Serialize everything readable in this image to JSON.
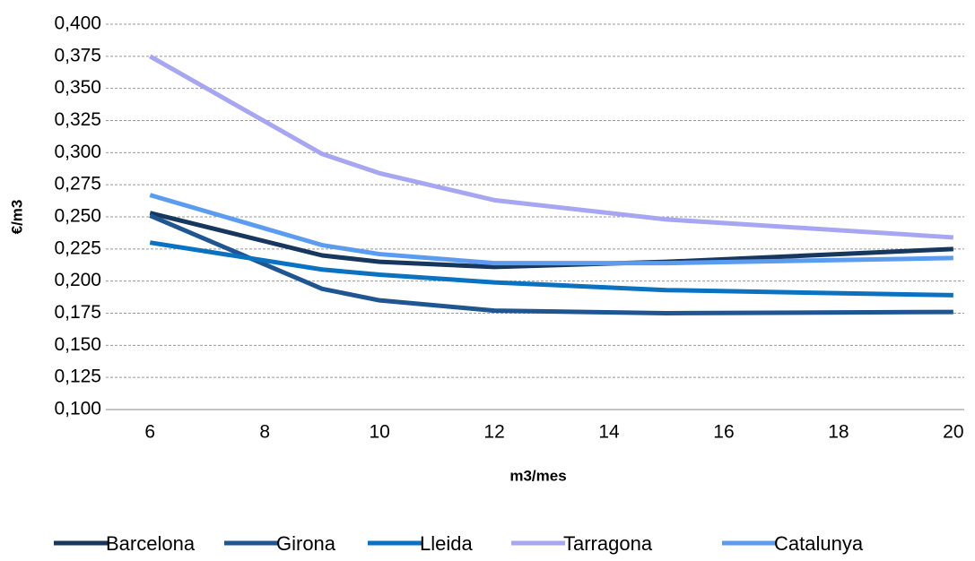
{
  "chart_data": {
    "type": "line",
    "x_label": "m3/mes",
    "y_label": "€/m3",
    "x": [
      6,
      9,
      10,
      12,
      15,
      20
    ],
    "series": [
      {
        "name": "Barcelona",
        "color": "#17375e",
        "values": [
          0.253,
          0.22,
          0.215,
          0.211,
          0.215,
          0.225
        ]
      },
      {
        "name": "Girona",
        "color": "#1f5591",
        "values": [
          0.251,
          0.194,
          0.185,
          0.177,
          0.175,
          0.176
        ]
      },
      {
        "name": "Lleida",
        "color": "#0a72c1",
        "values": [
          0.23,
          0.209,
          0.205,
          0.199,
          0.193,
          0.189
        ]
      },
      {
        "name": "Tarragona",
        "color": "#a6a6f2",
        "values": [
          0.375,
          0.299,
          0.284,
          0.263,
          0.248,
          0.234
        ]
      },
      {
        "name": "Catalunya",
        "color": "#5c9cf0",
        "values": [
          0.267,
          0.228,
          0.221,
          0.214,
          0.214,
          0.218
        ]
      }
    ],
    "xlim": [
      5.23,
      20.19
    ],
    "xticks": [
      6,
      8,
      10,
      12,
      14,
      16,
      18,
      20
    ],
    "ylim": [
      0.1,
      0.4
    ],
    "yticks": [
      {
        "value": 0.1,
        "label": "0,100"
      },
      {
        "value": 0.125,
        "label": "0,125"
      },
      {
        "value": 0.15,
        "label": "0,150"
      },
      {
        "value": 0.175,
        "label": "0,175"
      },
      {
        "value": 0.2,
        "label": "0,200"
      },
      {
        "value": 0.225,
        "label": "0,225"
      },
      {
        "value": 0.25,
        "label": "0,250"
      },
      {
        "value": 0.275,
        "label": "0,275"
      },
      {
        "value": 0.3,
        "label": "0,300"
      },
      {
        "value": 0.325,
        "label": "0,325"
      },
      {
        "value": 0.35,
        "label": "0,350"
      },
      {
        "value": 0.375,
        "label": "0,375"
      },
      {
        "value": 0.4,
        "label": "0,400"
      }
    ],
    "grid": true,
    "legend": "bottom"
  }
}
